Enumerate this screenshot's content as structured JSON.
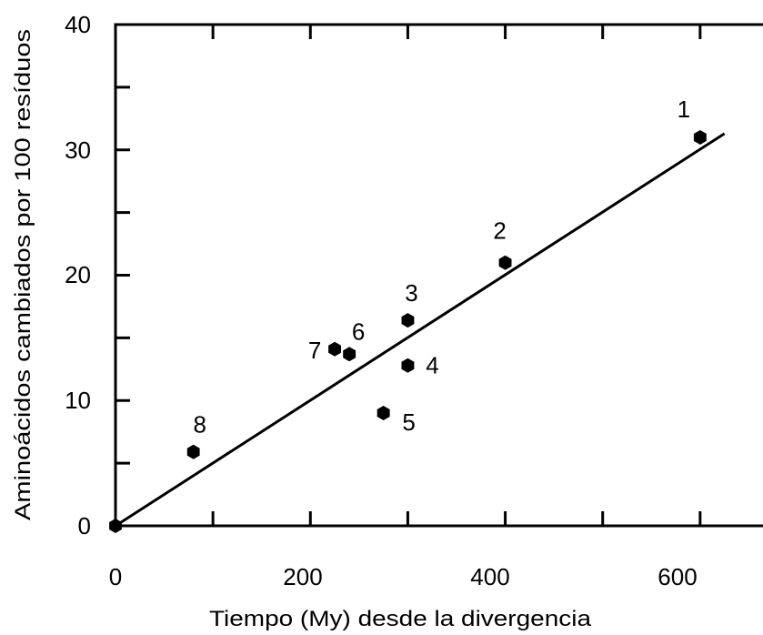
{
  "chart_data": {
    "type": "scatter",
    "title": "",
    "xlabel": "Tiempo (My) desde la divergencia",
    "ylabel": "Aminoácidos cambiados por 100 resíduos",
    "xlim": [
      0,
      700
    ],
    "ylim": [
      0,
      40
    ],
    "x_ticks": [
      "0",
      "200",
      "400",
      "600"
    ],
    "y_ticks": [
      "0",
      "10",
      "20",
      "30",
      "40"
    ],
    "grid": false,
    "legend": "none",
    "points": [
      {
        "label": "1",
        "x": 600,
        "y": 31.0
      },
      {
        "label": "2",
        "x": 400,
        "y": 21.0
      },
      {
        "label": "3",
        "x": 300,
        "y": 16.4
      },
      {
        "label": "4",
        "x": 300,
        "y": 12.8
      },
      {
        "label": "5",
        "x": 275,
        "y": 9.0
      },
      {
        "label": "6",
        "x": 240,
        "y": 13.7
      },
      {
        "label": "7",
        "x": 225,
        "y": 14.1
      },
      {
        "label": "8",
        "x": 80,
        "y": 5.9
      },
      {
        "label": "",
        "x": 0,
        "y": 0
      }
    ],
    "fit_line": {
      "x": [
        0,
        625
      ],
      "y": [
        0,
        31.3
      ]
    },
    "colors": {
      "axis": "#000000",
      "marker": "#000000",
      "line": "#000000"
    }
  }
}
